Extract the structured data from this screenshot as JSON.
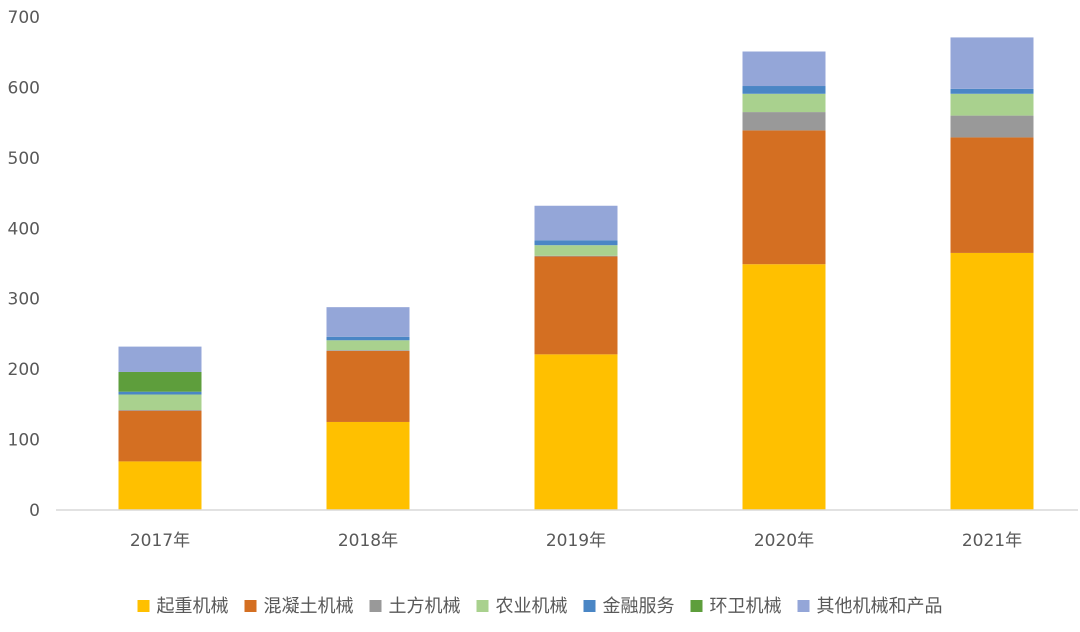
{
  "chart_data": {
    "type": "bar",
    "stacked": true,
    "categories": [
      "2017年",
      "2018年",
      "2019年",
      "2020年",
      "2021年"
    ],
    "ylim": [
      0,
      700
    ],
    "yticks": [
      0,
      100,
      200,
      300,
      400,
      500,
      600,
      700
    ],
    "grid": false,
    "legend_position": "bottom",
    "series": [
      {
        "name": "起重机械",
        "color": "#FFC000",
        "values": [
          69,
          125,
          221,
          349,
          365
        ]
      },
      {
        "name": "混凝土机械",
        "color": "#D46F22",
        "values": [
          72,
          101,
          139,
          190,
          164
        ]
      },
      {
        "name": "土方机械",
        "color": "#999999",
        "values": [
          1,
          1,
          1,
          26,
          31
        ]
      },
      {
        "name": "农业机械",
        "color": "#A9D18E",
        "values": [
          22,
          14,
          15,
          26,
          31
        ]
      },
      {
        "name": "金融服务",
        "color": "#4A86C5",
        "values": [
          4,
          5,
          7,
          11,
          7
        ]
      },
      {
        "name": "环卫机械",
        "color": "#5E9E3C",
        "values": [
          28,
          0,
          0,
          0,
          0
        ]
      },
      {
        "name": "其他机械和产品",
        "color": "#94A6D8",
        "values": [
          36,
          42,
          49,
          49,
          73
        ]
      }
    ]
  }
}
